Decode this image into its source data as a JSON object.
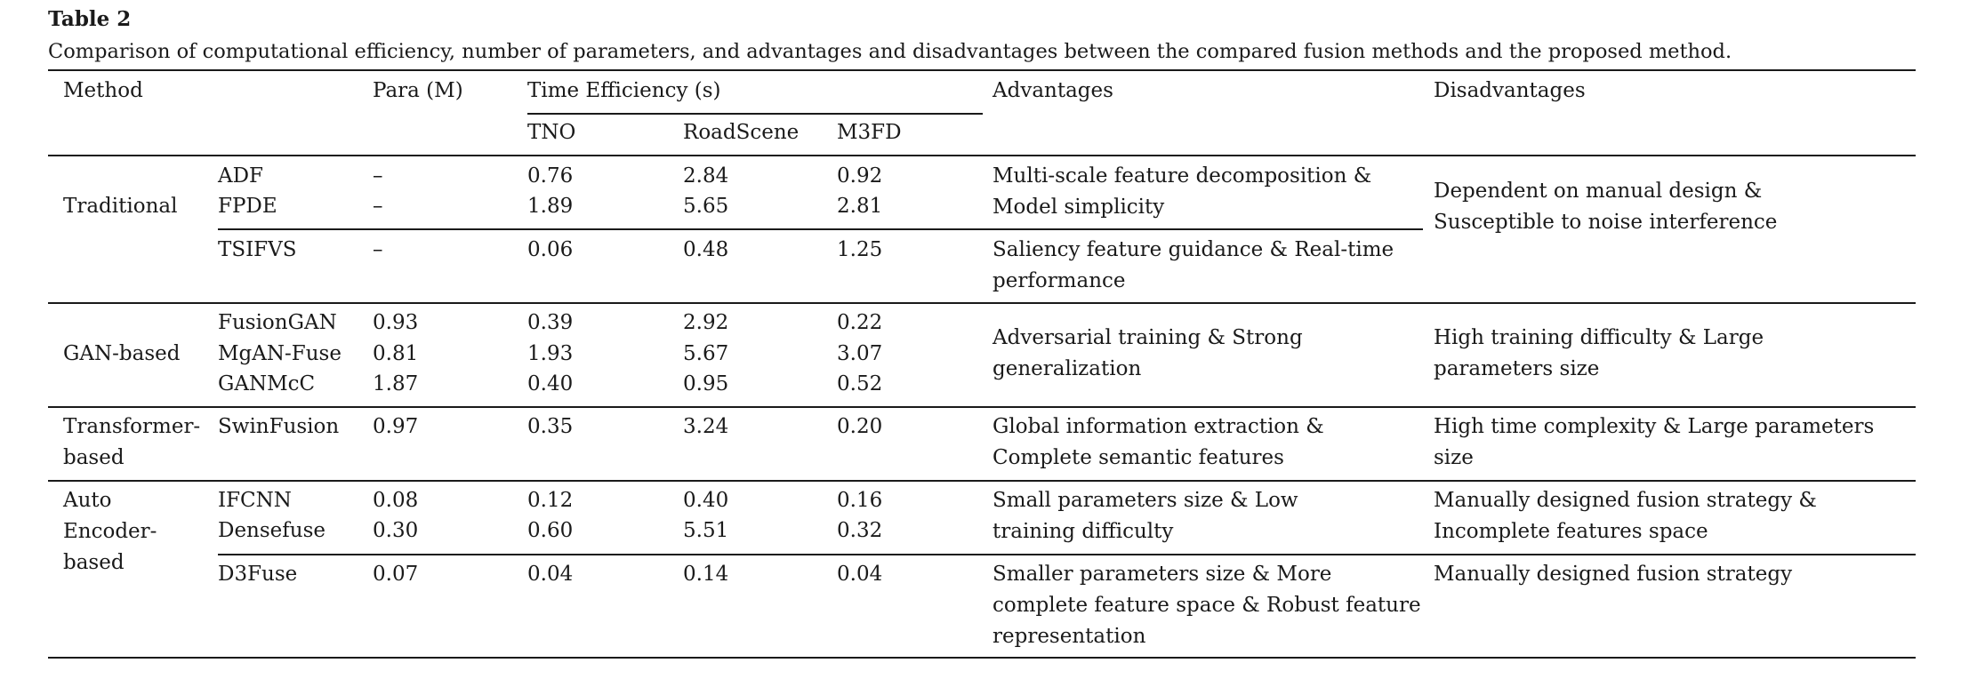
{
  "table": {
    "label": "Table 2",
    "caption": "Comparison of computational efficiency, number of parameters, and advantages and disadvantages between the compared fusion methods and the proposed method.",
    "headers": {
      "method": "Method",
      "para": "Para (M)",
      "time": "Time Efficiency (s)",
      "tno": "TNO",
      "roadscene": "RoadScene",
      "m3fd": "M3FD",
      "advantages": "Advantages",
      "disadvantages": "Disadvantages"
    },
    "groups": {
      "traditional": "Traditional",
      "gan": "GAN-based",
      "transformer": "Transformer-\nbased",
      "autoencoder": "Auto\nEncoder-\nbased"
    },
    "rows": {
      "adf": {
        "name": "ADF",
        "para": "–",
        "tno": "0.76",
        "roadscene": "2.84",
        "m3fd": "0.92"
      },
      "fpde": {
        "name": "FPDE",
        "para": "–",
        "tno": "1.89",
        "roadscene": "5.65",
        "m3fd": "2.81"
      },
      "tsifvs": {
        "name": "TSIFVS",
        "para": "–",
        "tno": "0.06",
        "roadscene": "0.48",
        "m3fd": "1.25"
      },
      "fusiongan": {
        "name": "FusionGAN",
        "para": "0.93",
        "tno": "0.39",
        "roadscene": "2.92",
        "m3fd": "0.22"
      },
      "mganfuse": {
        "name": "MgAN-Fuse",
        "para": "0.81",
        "tno": "1.93",
        "roadscene": "5.67",
        "m3fd": "3.07"
      },
      "ganmcc": {
        "name": "GANMcC",
        "para": "1.87",
        "tno": "0.40",
        "roadscene": "0.95",
        "m3fd": "0.52"
      },
      "swinfusion": {
        "name": "SwinFusion",
        "para": "0.97",
        "tno": "0.35",
        "roadscene": "3.24",
        "m3fd": "0.20"
      },
      "ifcnn": {
        "name": "IFCNN",
        "para": "0.08",
        "tno": "0.12",
        "roadscene": "0.40",
        "m3fd": "0.16"
      },
      "densefuse": {
        "name": "Densefuse",
        "para": "0.30",
        "tno": "0.60",
        "roadscene": "5.51",
        "m3fd": "0.32"
      },
      "d3fuse": {
        "name": "D3Fuse",
        "para": "0.07",
        "tno": "0.04",
        "roadscene": "0.14",
        "m3fd": "0.04"
      }
    },
    "advantages": {
      "adf_fpde": "Multi-scale feature decomposition &\nModel simplicity",
      "tsifvs": "Saliency feature guidance & Real-time\nperformance",
      "gan": "Adversarial training & Strong\ngeneralization",
      "swinfusion": "Global information extraction &\nComplete semantic features",
      "ifcnn_densefuse": "Small parameters size & Low\ntraining difficulty",
      "d3fuse": "Smaller parameters size & More\ncomplete feature space & Robust feature\nrepresentation"
    },
    "disadvantages": {
      "traditional": "Dependent on manual design &\nSusceptible to noise interference",
      "gan": "High training difficulty & Large\nparameters size",
      "swinfusion": "High time complexity & Large parameters\nsize",
      "ifcnn_densefuse": "Manually designed fusion strategy &\nIncomplete features space",
      "d3fuse": "Manually designed fusion strategy"
    }
  }
}
